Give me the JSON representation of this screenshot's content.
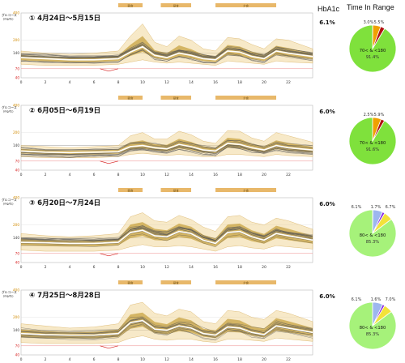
{
  "headers": {
    "hba1c": "HbA1c",
    "tir": "Time In Range"
  },
  "colors": {
    "orange_band": "#e8b86a",
    "fill_light": "#f1d79a",
    "fill_dark": "#b88a12",
    "median": "#ffffff",
    "gray_line": "#555555",
    "red_low": "#d62020",
    "pie_green": "#7fe13c",
    "pie_green_light": "#a6f27a",
    "pie_orange": "#f0a000",
    "pie_yellow": "#f3e23a",
    "pie_red": "#b01010",
    "pie_blue": "#9db7ee",
    "pie_purple": "#8a2be2",
    "axis": "#888888"
  },
  "chart_data": [
    {
      "type": "area",
      "title": "① 4月24日～5月15日",
      "ylabel": "グルコース (mg/dL)",
      "ylim": [
        40,
        400
      ],
      "yticks": [
        400,
        200,
        140,
        70,
        40
      ],
      "xticks": [
        0,
        2,
        4,
        6,
        8,
        10,
        12,
        14,
        16,
        18,
        20,
        22
      ],
      "xlim": [
        0,
        24
      ],
      "meal_bands": [
        {
          "label": "朝食",
          "x": [
            8,
            10
          ]
        },
        {
          "label": "昼食",
          "x": [
            11.5,
            14
          ]
        },
        {
          "label": "夕食",
          "x": [
            16,
            21
          ]
        }
      ],
      "hba1c": "6.1%",
      "median": [
        [
          0,
          120
        ],
        [
          2,
          115
        ],
        [
          4,
          110
        ],
        [
          6,
          110
        ],
        [
          8,
          115
        ],
        [
          9,
          145
        ],
        [
          10,
          170
        ],
        [
          11,
          130
        ],
        [
          12,
          120
        ],
        [
          13,
          140
        ],
        [
          14,
          130
        ],
        [
          15,
          115
        ],
        [
          16,
          110
        ],
        [
          17,
          150
        ],
        [
          18,
          145
        ],
        [
          19,
          125
        ],
        [
          20,
          115
        ],
        [
          21,
          150
        ],
        [
          22,
          140
        ],
        [
          24,
          125
        ]
      ],
      "upper": [
        [
          0,
          150
        ],
        [
          2,
          140
        ],
        [
          4,
          135
        ],
        [
          6,
          140
        ],
        [
          8,
          150
        ],
        [
          9,
          230
        ],
        [
          10,
          320
        ],
        [
          11,
          190
        ],
        [
          12,
          170
        ],
        [
          13,
          230
        ],
        [
          14,
          200
        ],
        [
          15,
          160
        ],
        [
          16,
          150
        ],
        [
          17,
          220
        ],
        [
          18,
          210
        ],
        [
          19,
          180
        ],
        [
          20,
          160
        ],
        [
          21,
          210
        ],
        [
          22,
          200
        ],
        [
          24,
          160
        ]
      ],
      "lower": [
        [
          0,
          90
        ],
        [
          2,
          85
        ],
        [
          4,
          85
        ],
        [
          6,
          85
        ],
        [
          8,
          90
        ],
        [
          9,
          100
        ],
        [
          10,
          110
        ],
        [
          11,
          100
        ],
        [
          12,
          95
        ],
        [
          13,
          100
        ],
        [
          14,
          95
        ],
        [
          15,
          90
        ],
        [
          16,
          85
        ],
        [
          17,
          105
        ],
        [
          18,
          100
        ],
        [
          19,
          95
        ],
        [
          20,
          90
        ],
        [
          21,
          105
        ],
        [
          22,
          100
        ],
        [
          24,
          95
        ]
      ],
      "pie": {
        "segments": [
          {
            "label": "70< & <180",
            "value": 91.4,
            "color": "#7fe13c"
          },
          {
            "label": "3.0%",
            "value": 3.0,
            "color": "#b01010"
          },
          {
            "label": "5.5%",
            "value": 5.5,
            "color": "#f0a000"
          }
        ],
        "center_label": "70< & <180",
        "center_value": "91.4%"
      }
    },
    {
      "type": "area",
      "title": "② 6月05日～6月19日",
      "ylabel": "グルコース (mg/dL)",
      "ylim": [
        40,
        400
      ],
      "yticks": [
        400,
        200,
        140,
        70,
        40
      ],
      "xticks": [
        0,
        2,
        4,
        6,
        8,
        10,
        12,
        14,
        16,
        18,
        20,
        22
      ],
      "xlim": [
        0,
        24
      ],
      "meal_bands": [
        {
          "label": "朝食",
          "x": [
            8,
            10
          ]
        },
        {
          "label": "昼食",
          "x": [
            11.5,
            14
          ]
        },
        {
          "label": "夕食",
          "x": [
            16,
            21
          ]
        }
      ],
      "hba1c": "6.0%",
      "median": [
        [
          0,
          115
        ],
        [
          2,
          110
        ],
        [
          4,
          108
        ],
        [
          6,
          110
        ],
        [
          8,
          112
        ],
        [
          9,
          135
        ],
        [
          10,
          140
        ],
        [
          11,
          130
        ],
        [
          12,
          125
        ],
        [
          13,
          145
        ],
        [
          14,
          135
        ],
        [
          15,
          120
        ],
        [
          16,
          115
        ],
        [
          17,
          150
        ],
        [
          18,
          145
        ],
        [
          19,
          130
        ],
        [
          20,
          120
        ],
        [
          21,
          140
        ],
        [
          22,
          130
        ],
        [
          24,
          120
        ]
      ],
      "upper": [
        [
          0,
          140
        ],
        [
          2,
          135
        ],
        [
          4,
          130
        ],
        [
          6,
          135
        ],
        [
          8,
          140
        ],
        [
          9,
          185
        ],
        [
          10,
          200
        ],
        [
          11,
          170
        ],
        [
          12,
          170
        ],
        [
          13,
          210
        ],
        [
          14,
          190
        ],
        [
          15,
          160
        ],
        [
          16,
          150
        ],
        [
          17,
          215
        ],
        [
          18,
          210
        ],
        [
          19,
          175
        ],
        [
          20,
          160
        ],
        [
          21,
          200
        ],
        [
          22,
          185
        ],
        [
          24,
          155
        ]
      ],
      "lower": [
        [
          0,
          90
        ],
        [
          2,
          85
        ],
        [
          4,
          85
        ],
        [
          6,
          85
        ],
        [
          8,
          90
        ],
        [
          9,
          100
        ],
        [
          10,
          105
        ],
        [
          11,
          100
        ],
        [
          12,
          95
        ],
        [
          13,
          100
        ],
        [
          14,
          95
        ],
        [
          15,
          90
        ],
        [
          16,
          90
        ],
        [
          17,
          100
        ],
        [
          18,
          100
        ],
        [
          19,
          95
        ],
        [
          20,
          90
        ],
        [
          21,
          100
        ],
        [
          22,
          95
        ],
        [
          24,
          90
        ]
      ],
      "pie": {
        "segments": [
          {
            "label": "70< & <180",
            "value": 91.6,
            "color": "#7fe13c"
          },
          {
            "label": "2.5%",
            "value": 2.5,
            "color": "#b01010"
          },
          {
            "label": "5.9%",
            "value": 5.9,
            "color": "#f0a000"
          }
        ],
        "center_label": "70< & <180",
        "center_value": "91.6%"
      }
    },
    {
      "type": "area",
      "title": "③ 6月20日～7月24日",
      "ylabel": "グルコース (mg/dL)",
      "ylim": [
        40,
        400
      ],
      "yticks": [
        400,
        200,
        140,
        70,
        40
      ],
      "xticks": [
        0,
        2,
        4,
        6,
        8,
        10,
        12,
        14,
        16,
        18,
        20,
        22
      ],
      "xlim": [
        0,
        24
      ],
      "meal_bands": [
        {
          "label": "朝食",
          "x": [
            8,
            10
          ]
        },
        {
          "label": "昼食",
          "x": [
            11.5,
            14
          ]
        },
        {
          "label": "夕食",
          "x": [
            16,
            21
          ]
        }
      ],
      "hba1c": "6.0%",
      "median": [
        [
          0,
          120
        ],
        [
          2,
          118
        ],
        [
          4,
          115
        ],
        [
          6,
          115
        ],
        [
          8,
          120
        ],
        [
          9,
          165
        ],
        [
          10,
          175
        ],
        [
          11,
          150
        ],
        [
          12,
          145
        ],
        [
          13,
          170
        ],
        [
          14,
          160
        ],
        [
          15,
          130
        ],
        [
          16,
          115
        ],
        [
          17,
          165
        ],
        [
          18,
          170
        ],
        [
          19,
          145
        ],
        [
          20,
          130
        ],
        [
          21,
          160
        ],
        [
          22,
          150
        ],
        [
          24,
          130
        ]
      ],
      "upper": [
        [
          0,
          160
        ],
        [
          2,
          150
        ],
        [
          4,
          145
        ],
        [
          6,
          150
        ],
        [
          8,
          160
        ],
        [
          9,
          260
        ],
        [
          10,
          290
        ],
        [
          11,
          230
        ],
        [
          12,
          220
        ],
        [
          13,
          270
        ],
        [
          14,
          240
        ],
        [
          15,
          190
        ],
        [
          16,
          170
        ],
        [
          17,
          260
        ],
        [
          18,
          270
        ],
        [
          19,
          220
        ],
        [
          20,
          200
        ],
        [
          21,
          250
        ],
        [
          22,
          230
        ],
        [
          24,
          180
        ]
      ],
      "lower": [
        [
          0,
          85
        ],
        [
          2,
          80
        ],
        [
          4,
          80
        ],
        [
          6,
          80
        ],
        [
          8,
          85
        ],
        [
          9,
          100
        ],
        [
          10,
          110
        ],
        [
          11,
          100
        ],
        [
          12,
          100
        ],
        [
          13,
          105
        ],
        [
          14,
          100
        ],
        [
          15,
          90
        ],
        [
          16,
          80
        ],
        [
          17,
          100
        ],
        [
          18,
          105
        ],
        [
          19,
          95
        ],
        [
          20,
          90
        ],
        [
          21,
          105
        ],
        [
          22,
          100
        ],
        [
          24,
          90
        ]
      ],
      "pie": {
        "segments": [
          {
            "label": "80< & <180",
            "value": 85.3,
            "color": "#a6f27a"
          },
          {
            "label": "6.1%",
            "value": 6.1,
            "color": "#f3e23a"
          },
          {
            "label": "1.7%",
            "value": 1.7,
            "color": "#8a2be2"
          },
          {
            "label": "6.7%",
            "value": 6.7,
            "color": "#9db7ee"
          }
        ],
        "center_label": "80< & <180",
        "center_value": "85.3%"
      }
    },
    {
      "type": "area",
      "title": "④ 7月25日～8月28日",
      "ylabel": "グルコース (mg/dL)",
      "ylim": [
        40,
        400
      ],
      "yticks": [
        400,
        200,
        140,
        70,
        40
      ],
      "xticks": [
        0,
        2,
        4,
        6,
        8,
        10,
        12,
        14,
        16,
        18,
        20,
        22
      ],
      "xlim": [
        0,
        24
      ],
      "meal_bands": [
        {
          "label": "朝食",
          "x": [
            8,
            10
          ]
        },
        {
          "label": "昼食",
          "x": [
            11.5,
            14
          ]
        },
        {
          "label": "夕食",
          "x": [
            16,
            21
          ]
        }
      ],
      "hba1c": "6.0%",
      "median": [
        [
          0,
          125
        ],
        [
          2,
          120
        ],
        [
          4,
          118
        ],
        [
          6,
          118
        ],
        [
          8,
          125
        ],
        [
          9,
          175
        ],
        [
          10,
          185
        ],
        [
          11,
          145
        ],
        [
          12,
          140
        ],
        [
          13,
          160
        ],
        [
          14,
          150
        ],
        [
          15,
          125
        ],
        [
          16,
          118
        ],
        [
          17,
          155
        ],
        [
          18,
          150
        ],
        [
          19,
          130
        ],
        [
          20,
          120
        ],
        [
          21,
          160
        ],
        [
          22,
          150
        ],
        [
          24,
          130
        ]
      ],
      "upper": [
        [
          0,
          170
        ],
        [
          2,
          160
        ],
        [
          4,
          150
        ],
        [
          6,
          155
        ],
        [
          8,
          170
        ],
        [
          9,
          290
        ],
        [
          10,
          310
        ],
        [
          11,
          230
        ],
        [
          12,
          210
        ],
        [
          13,
          260
        ],
        [
          14,
          240
        ],
        [
          15,
          180
        ],
        [
          16,
          170
        ],
        [
          17,
          250
        ],
        [
          18,
          240
        ],
        [
          19,
          200
        ],
        [
          20,
          190
        ],
        [
          21,
          250
        ],
        [
          22,
          230
        ],
        [
          24,
          180
        ]
      ],
      "lower": [
        [
          0,
          85
        ],
        [
          2,
          80
        ],
        [
          4,
          80
        ],
        [
          6,
          80
        ],
        [
          8,
          85
        ],
        [
          9,
          105
        ],
        [
          10,
          115
        ],
        [
          11,
          100
        ],
        [
          12,
          95
        ],
        [
          13,
          100
        ],
        [
          14,
          100
        ],
        [
          15,
          90
        ],
        [
          16,
          85
        ],
        [
          17,
          100
        ],
        [
          18,
          100
        ],
        [
          19,
          95
        ],
        [
          20,
          90
        ],
        [
          21,
          105
        ],
        [
          22,
          100
        ],
        [
          24,
          90
        ]
      ],
      "pie": {
        "segments": [
          {
            "label": "80< & <180",
            "value": 85.3,
            "color": "#a6f27a"
          },
          {
            "label": "6.1%",
            "value": 6.1,
            "color": "#f3e23a"
          },
          {
            "label": "1.6%",
            "value": 1.6,
            "color": "#8a2be2"
          },
          {
            "label": "7.0%",
            "value": 7.0,
            "color": "#9db7ee"
          }
        ],
        "center_label": "80< & <180",
        "center_value": "85.3%"
      }
    }
  ]
}
